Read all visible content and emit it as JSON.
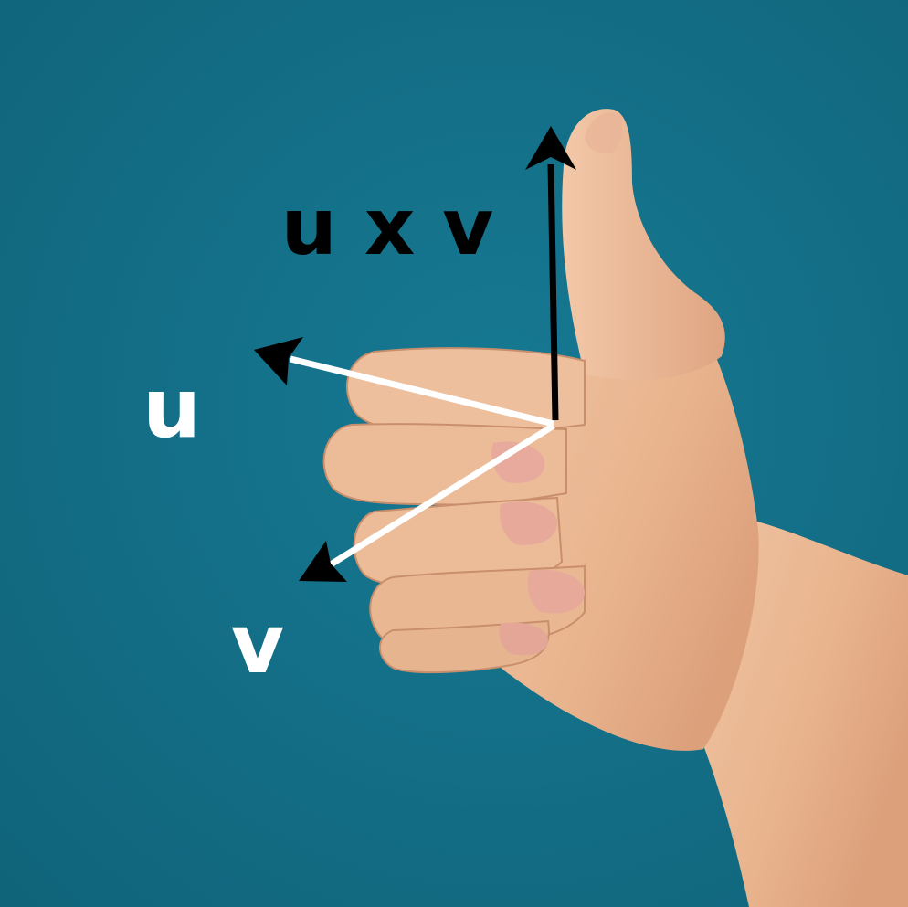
{
  "labels": {
    "cross_product": "u x v",
    "vector_u": "u",
    "vector_v": "v"
  },
  "colors": {
    "background": "#146f86",
    "skin": "#eab995",
    "skin_shadow": "#c98f6c",
    "nail": "#e6aa9c",
    "cross_product_arrow": "#000000",
    "input_vector_arrows": "#ffffff"
  }
}
